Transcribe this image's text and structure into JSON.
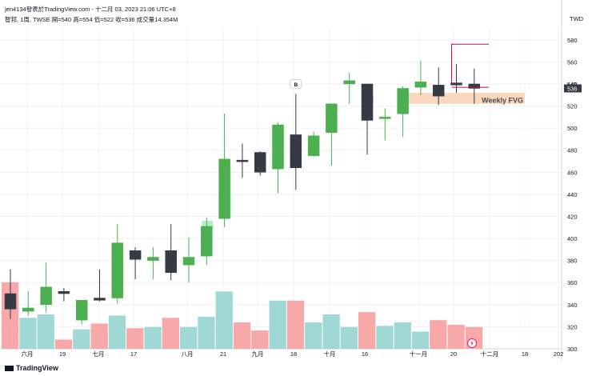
{
  "header": {
    "publish_line": "jen4134發表於TradingView.com - 十二月 03, 2023 21:06 UTC+8",
    "symbol_line": "智邦, 1周, TWSE  開=540  高=554  低=522  收=536  成交量14.354M",
    "currency": "TWD"
  },
  "footer": {
    "logo_text": "TradingView"
  },
  "chart_data": {
    "type": "candlestick",
    "ylim": [
      300,
      590
    ],
    "y_ticks": [
      300,
      320,
      340,
      360,
      380,
      400,
      420,
      440,
      460,
      480,
      500,
      520,
      540,
      560,
      580
    ],
    "x_tick_labels": [
      "六月",
      "19",
      "七月",
      "17",
      "八月",
      "21",
      "九月",
      "18",
      "十月",
      "16",
      "十一月",
      "20",
      "十二月",
      "18",
      "202"
    ],
    "last_price": 536,
    "last_price_label": "536",
    "prev_price_label": "540",
    "annotations": {
      "fvg_label": "Weekly FVG",
      "marker_label": "B"
    },
    "fvg_zone": {
      "low": 522,
      "high": 532
    },
    "candles": [
      {
        "o": 350,
        "h": 372,
        "l": 327,
        "c": 336
      },
      {
        "o": 334,
        "h": 352,
        "l": 330,
        "c": 337
      },
      {
        "o": 340,
        "h": 378,
        "l": 333,
        "c": 356
      },
      {
        "o": 352,
        "h": 355,
        "l": 343,
        "c": 350
      },
      {
        "o": 326,
        "h": 342,
        "l": 322,
        "c": 344
      },
      {
        "o": 346,
        "h": 372,
        "l": 343,
        "c": 344
      },
      {
        "o": 346,
        "h": 413,
        "l": 341,
        "c": 396
      },
      {
        "o": 389,
        "h": 392,
        "l": 363,
        "c": 381
      },
      {
        "o": 380,
        "h": 392,
        "l": 363,
        "c": 383
      },
      {
        "o": 389,
        "h": 413,
        "l": 362,
        "c": 369
      },
      {
        "o": 376,
        "h": 401,
        "l": 360,
        "c": 383
      },
      {
        "o": 384,
        "h": 419,
        "l": 376,
        "c": 411
      },
      {
        "o": 418,
        "h": 513,
        "l": 410,
        "c": 472
      },
      {
        "o": 471,
        "h": 486,
        "l": 455,
        "c": 470
      },
      {
        "o": 478,
        "h": 479,
        "l": 457,
        "c": 460
      },
      {
        "o": 463,
        "h": 505,
        "l": 441,
        "c": 503
      },
      {
        "o": 494,
        "h": 531,
        "l": 444,
        "c": 464
      },
      {
        "o": 475,
        "h": 497,
        "l": 474,
        "c": 493
      },
      {
        "o": 496,
        "h": 521,
        "l": 466,
        "c": 522
      },
      {
        "o": 540,
        "h": 550,
        "l": 522,
        "c": 543
      },
      {
        "o": 540,
        "h": 540,
        "l": 476,
        "c": 507
      },
      {
        "o": 510,
        "h": 518,
        "l": 489,
        "c": 510
      },
      {
        "o": 513,
        "h": 538,
        "l": 492,
        "c": 536
      },
      {
        "o": 537,
        "h": 561,
        "l": 530,
        "c": 542
      },
      {
        "o": 539,
        "h": 555,
        "l": 521,
        "c": 529
      },
      {
        "o": 541,
        "h": 558,
        "l": 532,
        "c": 539
      },
      {
        "o": 540,
        "h": 554,
        "l": 522,
        "c": 536
      }
    ],
    "volume_max": 60,
    "volumes": [
      58,
      27,
      30,
      8,
      17,
      22,
      29,
      18,
      19,
      27,
      19,
      28,
      50,
      23,
      16,
      42,
      42,
      23,
      30,
      19,
      32,
      20,
      23,
      15,
      25,
      21,
      19
    ],
    "fvg_fills": [
      {
        "index": 11,
        "low": 408,
        "high": 416
      },
      {
        "index": 12,
        "low": 440,
        "high": 462
      },
      {
        "index": 12,
        "low": 419,
        "high": 440
      },
      {
        "index": 20,
        "low": 522,
        "high": 528
      },
      {
        "index": 22,
        "low": 522,
        "high": 531
      }
    ],
    "colors": {
      "up": "#4caf50",
      "down": "#363a45",
      "vol_up": "#9fd8d4",
      "vol_down": "#f7a8a8",
      "fvg_zone": "#f9d8bd",
      "gray_fill": "#d9d9d9",
      "green_fill": "#b2f0c9",
      "target_line": "#b2184e",
      "grid": "#eef0f3"
    }
  }
}
